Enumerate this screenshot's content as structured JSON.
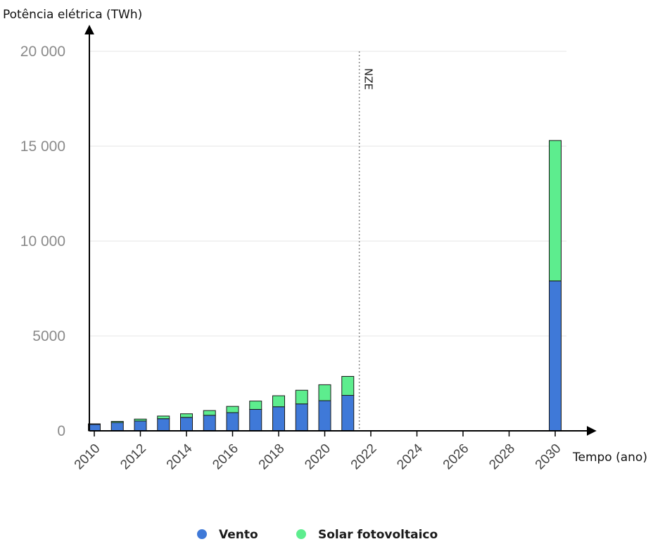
{
  "chart_data": {
    "type": "bar",
    "stacked": true,
    "ylabel": "Potência elétrica (TWh)",
    "xlabel": "Tempo (ano)",
    "ylim": [
      0,
      20000
    ],
    "yticks": [
      0,
      5000,
      10000,
      15000,
      20000
    ],
    "ytick_labels": [
      "0",
      "5000",
      "10 000",
      "15 000",
      "20 000"
    ],
    "xlim": [
      2010,
      2030
    ],
    "xticks": [
      2010,
      2012,
      2014,
      2016,
      2018,
      2020,
      2022,
      2024,
      2026,
      2028,
      2030
    ],
    "xtick_labels": [
      "2010",
      "2012",
      "2014",
      "2016",
      "2018",
      "2020",
      "2022",
      "2024",
      "2026",
      "2028",
      "2030"
    ],
    "grid": true,
    "legend_position": "bottom",
    "annotations": [
      {
        "text": "NZE",
        "x": 2021.5
      }
    ],
    "categories": [
      2010,
      2011,
      2012,
      2013,
      2014,
      2015,
      2016,
      2017,
      2018,
      2019,
      2020,
      2021,
      2030
    ],
    "series": [
      {
        "name": "Vento",
        "color": "#3f79d8",
        "values": [
          340,
          440,
          520,
          640,
          710,
          820,
          960,
          1130,
          1270,
          1420,
          1590,
          1870,
          7900
        ]
      },
      {
        "name": "Solar fotovoltaico",
        "color": "#5ded8e",
        "values": [
          30,
          60,
          100,
          140,
          190,
          250,
          330,
          440,
          580,
          720,
          840,
          1000,
          7400
        ]
      }
    ]
  }
}
